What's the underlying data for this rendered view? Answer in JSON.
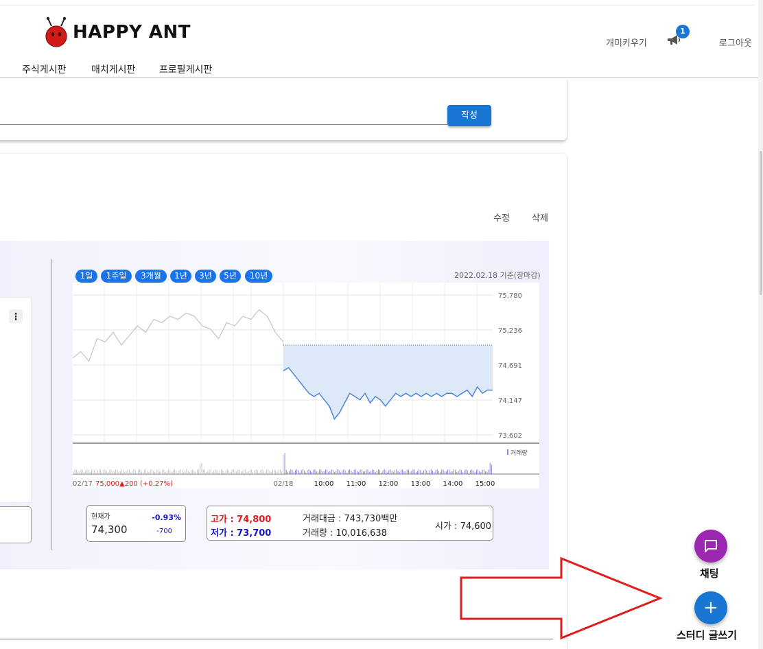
{
  "header": {
    "logo_text": "HAPPY ANT",
    "pet_link": "개미키우기",
    "notification_count": "1",
    "logout_link": "로그아웃"
  },
  "nav": {
    "items": [
      "주식게시판",
      "매치게시판",
      "프로필게시판"
    ]
  },
  "compose": {
    "write_button": "작성"
  },
  "post": {
    "edit_link": "수정",
    "delete_link": "삭제",
    "menu_dots": "⋮"
  },
  "stock": {
    "periods": [
      "1일",
      "1주일",
      "3개월",
      "1년",
      "3년",
      "5년",
      "10년"
    ],
    "as_of": "2022.02.18 기준(장마감)",
    "current_label": "현재가",
    "current_price": "74,300",
    "change_pct": "-0.93%",
    "change_amount": "-700",
    "high": "고가 : 74,800",
    "low": "저가 : 73,700",
    "trade_amount": "거래대금 : 743,730백만",
    "trade_volume": "거래량 : 10,016,638",
    "open_price": "시가 : 74,600"
  },
  "chart_data": {
    "type": "line",
    "title": "",
    "y_ticks": [
      "75,780",
      "75,236",
      "74,691",
      "74,147",
      "73,602"
    ],
    "ylim": [
      73602,
      75780
    ],
    "x_ticks": [
      "02/18",
      "10:00",
      "11:00",
      "12:00",
      "13:00",
      "14:00",
      "15:00"
    ],
    "prev_day_label": "02/17",
    "prev_close_text": "75,000",
    "prev_change_text": "▲200 (+0.27%)",
    "volume_legend": "거래량",
    "prev_close": 75000,
    "series": [
      {
        "name": "",
        "x": [
          "02/17",
          "02/17",
          "02/17",
          "02/17",
          "02/17",
          "02/17",
          "02/17",
          "02/17",
          "02/17",
          "02/17",
          "02/17",
          "02/17",
          "02/17",
          "02/17",
          "02/17",
          "02/17",
          "02/17",
          "02/17",
          "02/17",
          "02/17",
          "02/17",
          "02/17",
          "02/17",
          "02/17",
          "02/17",
          "02/17",
          "02/17"
        ],
        "values": [
          74800,
          74900,
          74750,
          75100,
          75050,
          75200,
          75000,
          75150,
          75300,
          75200,
          75400,
          75350,
          75450,
          75400,
          75500,
          75450,
          75300,
          75250,
          75100,
          75350,
          75300,
          75450,
          75400,
          75550,
          75450,
          75200,
          75050
        ]
      },
      {
        "name": "",
        "x": [
          "09:00",
          "09:05",
          "09:10",
          "09:15",
          "09:20",
          "09:30",
          "09:40",
          "09:50",
          "10:00",
          "10:10",
          "10:20",
          "10:30",
          "10:40",
          "10:50",
          "11:00",
          "11:10",
          "11:20",
          "11:30",
          "11:40",
          "11:50",
          "12:00",
          "12:10",
          "12:20",
          "12:30",
          "12:40",
          "12:50",
          "13:00",
          "13:10",
          "13:20",
          "13:30",
          "13:40",
          "13:50",
          "14:00",
          "14:10",
          "14:20",
          "14:30",
          "14:40",
          "14:50",
          "15:00",
          "15:10",
          "15:20",
          "15:30"
        ],
        "values": [
          74600,
          74650,
          74550,
          74450,
          74350,
          74250,
          74200,
          74250,
          74150,
          74050,
          73850,
          73950,
          74100,
          74250,
          74200,
          74150,
          74250,
          74100,
          74200,
          74150,
          74050,
          74150,
          74250,
          74200,
          74250,
          74200,
          74250,
          74200,
          74250,
          74200,
          74250,
          74200,
          74250,
          74250,
          74200,
          74250,
          74300,
          74200,
          74350,
          74250,
          74300,
          74300
        ]
      }
    ]
  },
  "fabs": {
    "chat_label": "채팅",
    "study_label": "스터디 글쓰기",
    "plus": "+"
  }
}
